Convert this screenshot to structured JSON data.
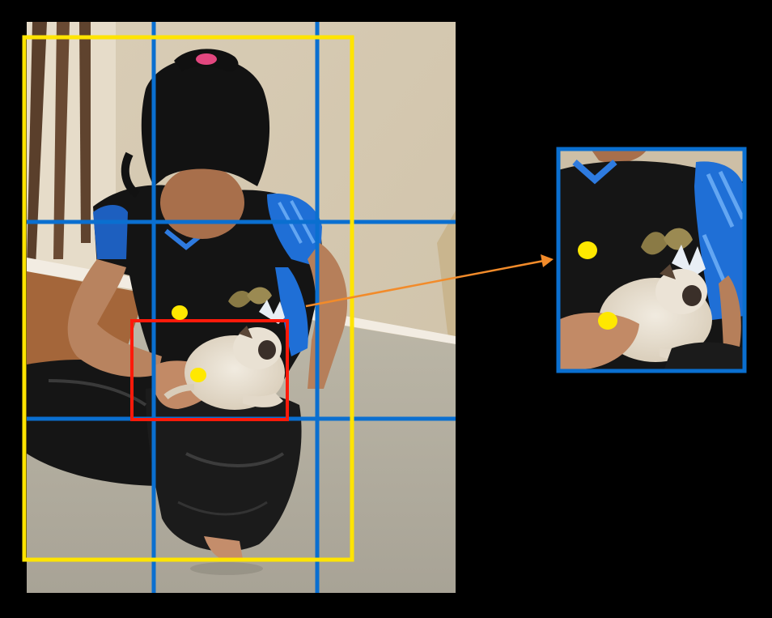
{
  "figure": {
    "background_color": "#000000",
    "photo": {
      "subject": "person-holding-puppy",
      "grid_rows": 3,
      "grid_cols": 3
    },
    "zoom_panel": {
      "subject": "puppy-closeup"
    },
    "colors": {
      "grid_lines": "#0a6fd0",
      "ground_truth_box": "#ffe400",
      "object_box": "#ff1a0a",
      "center_point": "#ffe800",
      "arrow": "#f28b2a",
      "zoom_frame": "#0a6fd0"
    }
  }
}
